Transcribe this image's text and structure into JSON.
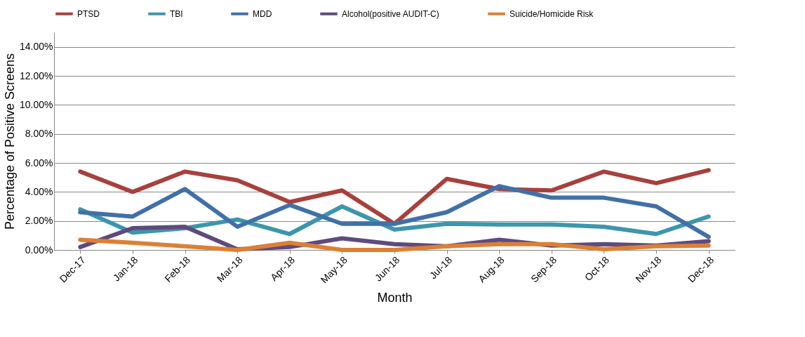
{
  "chart_data": {
    "type": "line",
    "xlabel": "Month",
    "ylabel": "Percentage of Positive Screens",
    "categories": [
      "Dec-17",
      "Jan-18",
      "Feb-18",
      "Mar-18",
      "Apr-18",
      "May-18",
      "Jun-18",
      "Jul-18",
      "Aug-18",
      "Sep-18",
      "Oct-18",
      "Nov-18",
      "Dec-18"
    ],
    "series": [
      {
        "name": "PTSD",
        "color": "#a8403c",
        "values": [
          5.4,
          4.0,
          5.4,
          4.8,
          3.3,
          4.1,
          1.8,
          4.9,
          4.2,
          4.1,
          5.4,
          4.6,
          5.5
        ]
      },
      {
        "name": "TBI",
        "color": "#3d96ab",
        "values": [
          2.8,
          1.2,
          1.5,
          2.1,
          1.1,
          3.0,
          1.4,
          1.8,
          1.75,
          1.75,
          1.6,
          1.1,
          2.3
        ]
      },
      {
        "name": "MDD",
        "color": "#4170a8",
        "values": [
          2.6,
          2.3,
          4.2,
          1.6,
          3.1,
          1.8,
          1.8,
          2.6,
          4.4,
          3.6,
          3.6,
          3.0,
          0.9
        ]
      },
      {
        "name": "Alcohol(positive AUDIT-C)",
        "color": "#5f4a7d",
        "values": [
          0.2,
          1.5,
          1.6,
          0.05,
          0.2,
          0.8,
          0.4,
          0.25,
          0.7,
          0.3,
          0.4,
          0.3,
          0.6
        ]
      },
      {
        "name": "Suicide/Homicide Risk",
        "color": "#dc8034",
        "values": [
          0.7,
          0.5,
          0.25,
          0.0,
          0.5,
          0.0,
          0.0,
          0.25,
          0.4,
          0.4,
          0.05,
          0.25,
          0.3
        ]
      }
    ],
    "ylim": [
      0,
      15
    ],
    "yticks": [
      {
        "value": 0,
        "label": "0.00%"
      },
      {
        "value": 2,
        "label": "2.00%"
      },
      {
        "value": 4,
        "label": "4.00%"
      },
      {
        "value": 6,
        "label": "6.00%"
      },
      {
        "value": 8,
        "label": "8.00%"
      },
      {
        "value": 10,
        "label": "10.00%"
      },
      {
        "value": 12,
        "label": "12.00%"
      },
      {
        "value": 14,
        "label": "14.00%"
      }
    ],
    "grid": "y",
    "legend": "top",
    "marker": "none",
    "line_style": "solid"
  }
}
